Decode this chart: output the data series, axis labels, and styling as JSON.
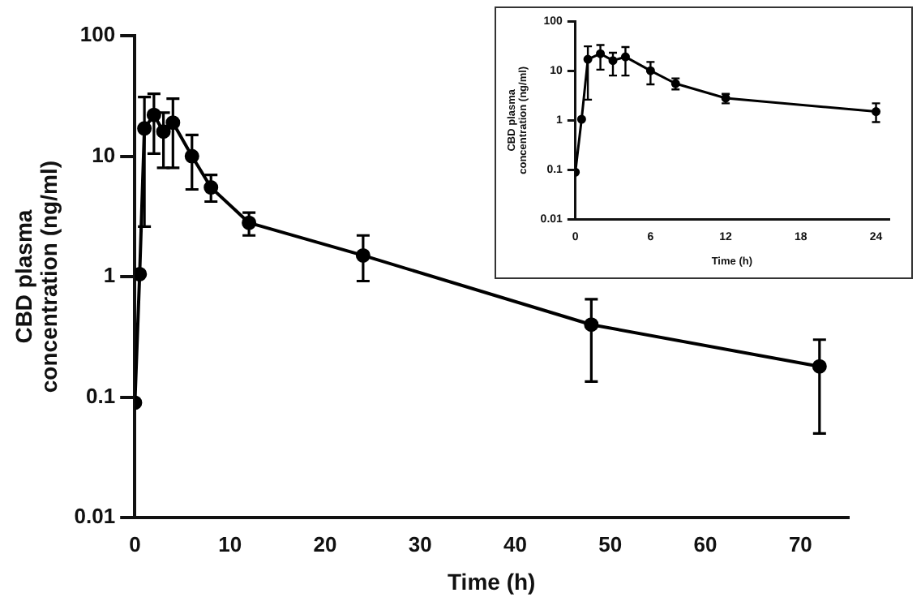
{
  "chart_data": [
    {
      "type": "line",
      "xlabel": "Time (h)",
      "ylabel": "CBD plasma concentration (ng/ml)",
      "x": [
        0,
        0.5,
        1,
        2,
        3,
        4,
        6,
        8,
        12,
        24,
        48,
        72
      ],
      "series": [
        {
          "color": "#000000",
          "values": [
            0.09,
            1.05,
            17,
            22,
            16,
            19,
            10,
            5.5,
            2.8,
            1.5,
            0.4,
            0.18
          ],
          "errors": [
            null,
            null,
            [
              2.6,
              31
            ],
            [
              10.5,
              33
            ],
            [
              8,
              23
            ],
            [
              8,
              30
            ],
            [
              5.3,
              15
            ],
            [
              4.2,
              7
            ],
            [
              2.2,
              3.4
            ],
            [
              0.92,
              2.2
            ],
            [
              0.135,
              0.65
            ],
            [
              0.05,
              0.3
            ]
          ]
        }
      ],
      "log": "y",
      "xlim": [
        0,
        75
      ],
      "xticks": [
        0,
        10,
        20,
        30,
        40,
        50,
        60,
        70
      ],
      "ylim": [
        0.01,
        100
      ],
      "yticks": [
        0.01,
        0.1,
        1,
        10,
        100
      ],
      "marker": "circle",
      "grid": false,
      "legend": false
    },
    {
      "type": "line",
      "xlabel": "Time (h)",
      "ylabel": "CBD plasma concentration (ng/ml)",
      "x": [
        0,
        0.5,
        1,
        2,
        3,
        4,
        6,
        8,
        12,
        24
      ],
      "series": [
        {
          "color": "#000000",
          "values": [
            0.09,
            1.05,
            17,
            22,
            16,
            19,
            10,
            5.5,
            2.8,
            1.5
          ],
          "errors": [
            null,
            null,
            [
              2.6,
              31
            ],
            [
              10.5,
              33
            ],
            [
              8,
              23
            ],
            [
              8,
              30
            ],
            [
              5.3,
              15
            ],
            [
              4.2,
              7
            ],
            [
              2.2,
              3.4
            ],
            [
              0.92,
              2.2
            ]
          ]
        }
      ],
      "log": "y",
      "xlim": [
        0,
        25
      ],
      "xticks": [
        0,
        6,
        12,
        18,
        24
      ],
      "ylim": [
        0.01,
        100
      ],
      "yticks": [
        0.01,
        0.1,
        1,
        10,
        100
      ],
      "marker": "circle",
      "grid": false,
      "legend": false
    }
  ]
}
